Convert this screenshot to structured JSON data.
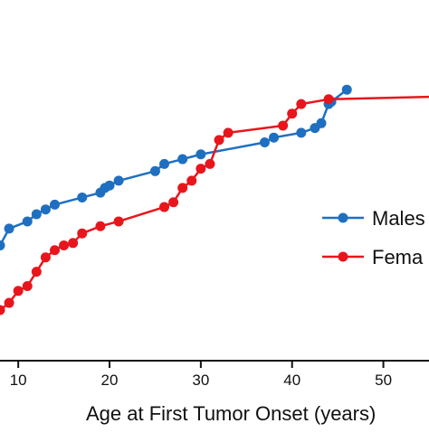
{
  "chart_data": {
    "type": "line",
    "xlabel": "Age at First Tumor Onset (years)",
    "ylabel": "",
    "xlim": [
      8,
      55
    ],
    "ylim": [
      0,
      1
    ],
    "x_ticks": [
      10,
      20,
      30,
      40,
      50
    ],
    "x_tick_labels": [
      "10",
      "20",
      "30",
      "40",
      "50"
    ],
    "grid": false,
    "legend_position": "right",
    "series": [
      {
        "name": "Males",
        "color": "#1f6fc0",
        "x": [
          8,
          9,
          11,
          12,
          13,
          14,
          17,
          19,
          19.5,
          20,
          21,
          25,
          26,
          28,
          30,
          37,
          38,
          41,
          42.5,
          43.2,
          44,
          44.3,
          46
        ],
        "y": [
          0.27,
          0.34,
          0.37,
          0.4,
          0.42,
          0.44,
          0.47,
          0.49,
          0.51,
          0.52,
          0.54,
          0.58,
          0.61,
          0.63,
          0.65,
          0.7,
          0.72,
          0.74,
          0.76,
          0.78,
          0.86,
          0.87,
          0.92
        ],
        "continuation": {
          "x": [],
          "y": []
        }
      },
      {
        "name": "Females",
        "color": "#e8161c",
        "x": [
          8,
          9,
          10,
          11,
          12,
          13,
          14,
          15,
          16,
          17,
          19,
          21,
          26,
          27,
          28,
          29,
          30,
          31,
          32,
          33,
          39,
          40,
          41,
          44
        ],
        "y": [
          0.0,
          0.03,
          0.08,
          0.1,
          0.16,
          0.22,
          0.25,
          0.27,
          0.28,
          0.32,
          0.35,
          0.37,
          0.43,
          0.45,
          0.51,
          0.54,
          0.59,
          0.61,
          0.71,
          0.74,
          0.77,
          0.82,
          0.86,
          0.88
        ],
        "continuation": {
          "x": [
            44,
            55
          ],
          "y": [
            0.88,
            0.89
          ]
        }
      }
    ],
    "legend_labels": [
      "Males",
      "Fema"
    ]
  }
}
